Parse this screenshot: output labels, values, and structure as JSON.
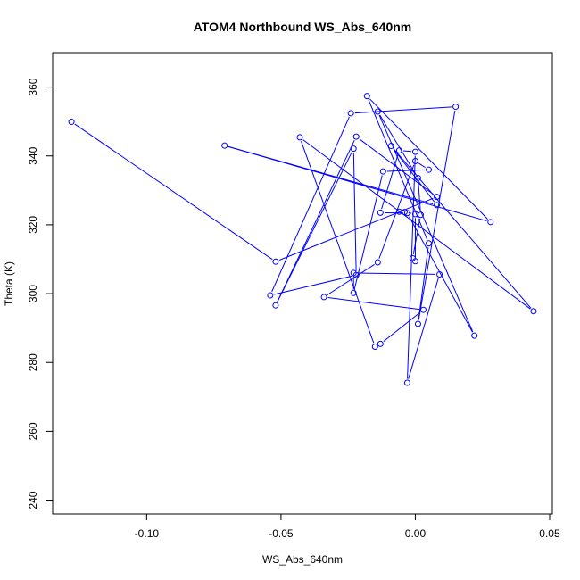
{
  "chart_data": {
    "type": "line",
    "title": "ATOM4 Northbound WS_Abs_640nm",
    "xlabel": "WS_Abs_640nm",
    "ylabel": "Theta (K)",
    "xlim": [
      -0.135,
      0.051
    ],
    "ylim": [
      236,
      370
    ],
    "xticks": [
      -0.1,
      -0.05,
      0.0,
      0.05
    ],
    "xtick_labels": [
      "-0.10",
      "-0.05",
      "0.00",
      "0.05"
    ],
    "yticks": [
      240,
      260,
      280,
      300,
      320,
      340,
      360
    ],
    "ytick_labels": [
      "240",
      "260",
      "280",
      "300",
      "320",
      "340",
      "360"
    ],
    "grid": false,
    "series": [
      {
        "color": "#0000ff",
        "markers": "open-circle",
        "points": [
          [
            -0.128,
            349.9
          ],
          [
            -0.052,
            309.3
          ],
          [
            0.008,
            328.1
          ],
          [
            -0.022,
            345.6
          ],
          [
            -0.052,
            296.6
          ],
          [
            -0.023,
            342.1
          ],
          [
            -0.022,
            305.4
          ],
          [
            -0.054,
            299.5
          ],
          [
            -0.024,
            352.4
          ],
          [
            0.015,
            354.3
          ],
          [
            0.001,
            291.2
          ],
          [
            0.005,
            314.6
          ],
          [
            -0.018,
            357.4
          ],
          [
            0.028,
            320.8
          ],
          [
            -0.071,
            343.0
          ],
          [
            0.008,
            325.7
          ],
          [
            -0.009,
            342.9
          ],
          [
            0.044,
            294.9
          ],
          [
            -0.043,
            345.4
          ],
          [
            -0.015,
            284.6
          ],
          [
            -0.013,
            285.4
          ],
          [
            0.003,
            295.3
          ],
          [
            -0.034,
            299.0
          ],
          [
            -0.014,
            309.1
          ],
          [
            0.0,
            338.5
          ],
          [
            0.005,
            336.0
          ],
          [
            -0.012,
            335.5
          ],
          [
            -0.023,
            300.2
          ],
          [
            -0.023,
            306.0
          ],
          [
            0.009,
            305.6
          ],
          [
            -0.003,
            274.1
          ],
          [
            0.0,
            341.2
          ],
          [
            -0.006,
            341.6
          ],
          [
            -0.013,
            323.5
          ],
          [
            -0.003,
            323.4
          ],
          [
            0.022,
            287.8
          ],
          [
            -0.014,
            352.9
          ],
          [
            0.001,
            333.6
          ],
          [
            0.002,
            322.9
          ],
          [
            -0.001,
            310.3
          ],
          [
            0.0,
            309.4
          ],
          [
            0.0,
            323.1
          ],
          [
            -0.004,
            323.7
          ],
          [
            -0.006,
            323.8
          ]
        ]
      }
    ]
  }
}
